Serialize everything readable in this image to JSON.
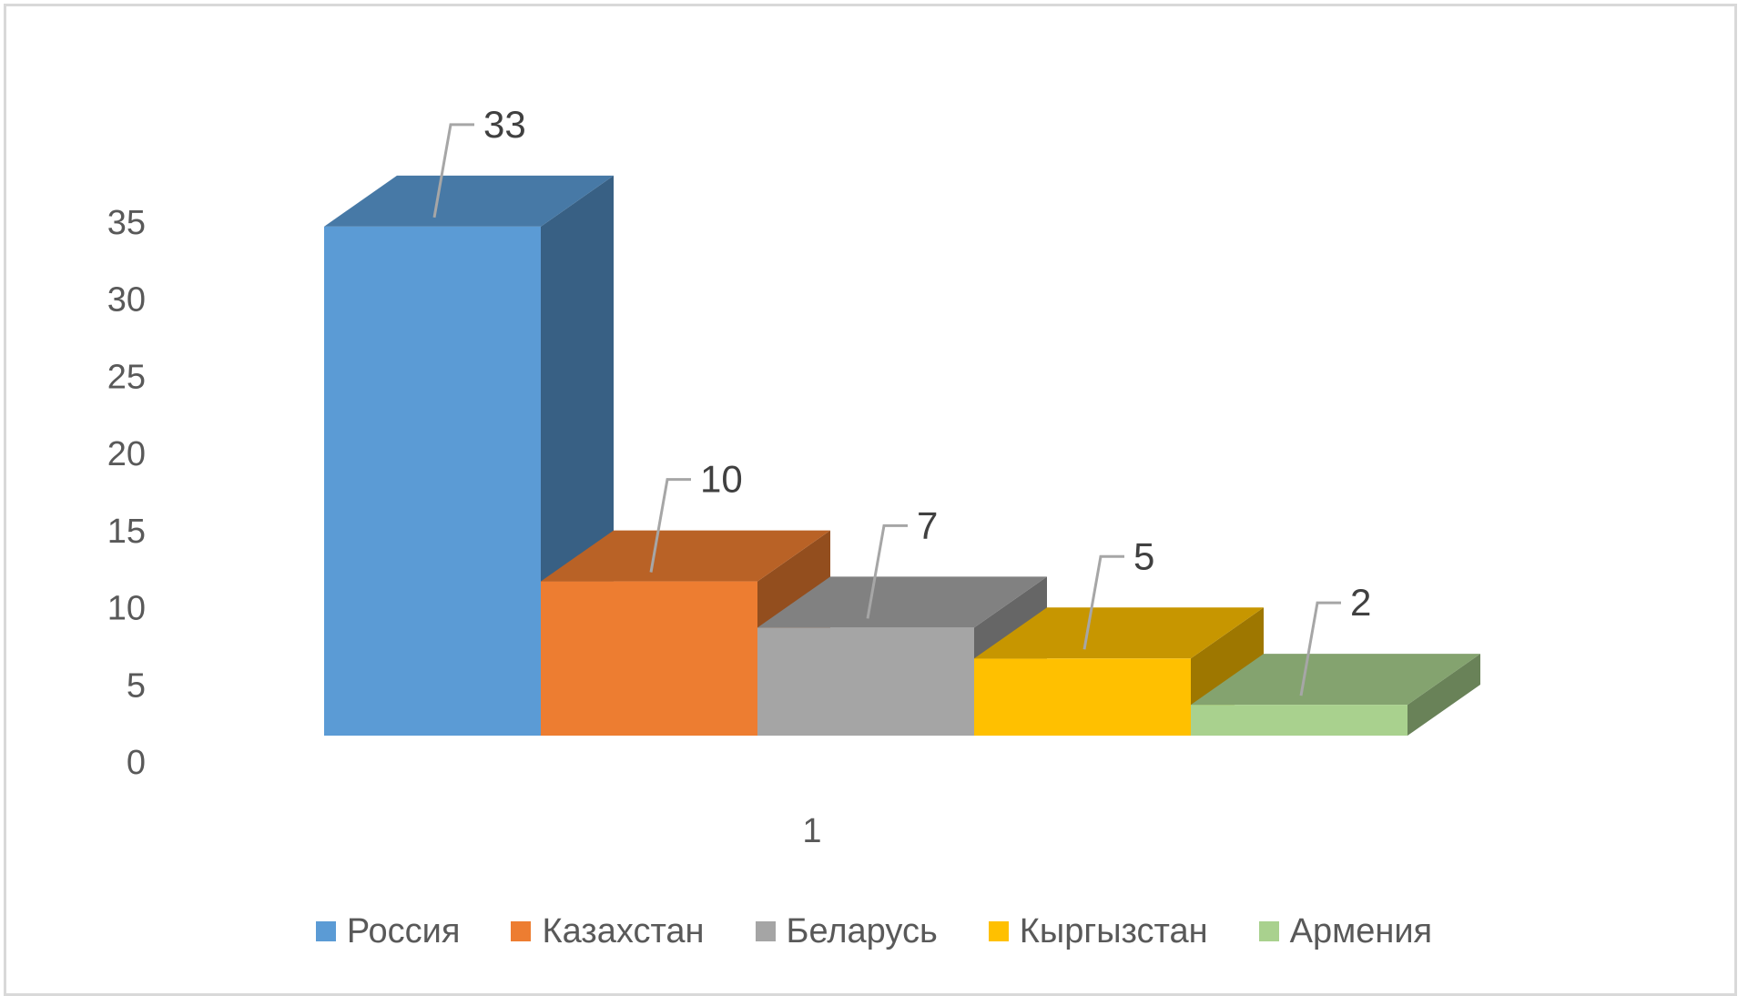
{
  "chart_data": {
    "type": "bar",
    "categories": [
      "1"
    ],
    "series": [
      {
        "name": "Россия",
        "values": [
          33
        ],
        "color": "#5b9bd5"
      },
      {
        "name": "Казахстан",
        "values": [
          10
        ],
        "color": "#ed7d31"
      },
      {
        "name": "Беларусь",
        "values": [
          7
        ],
        "color": "#a5a5a5"
      },
      {
        "name": "Кыргызстан",
        "values": [
          5
        ],
        "color": "#ffc000"
      },
      {
        "name": "Армения",
        "values": [
          2
        ],
        "color": "#a9d18e"
      }
    ],
    "yticks": [
      "0",
      "5",
      "10",
      "15",
      "20",
      "25",
      "30",
      "35"
    ],
    "ylim": [
      0,
      35
    ],
    "title": "",
    "xlabel": "",
    "ylabel": "",
    "legend_position": "bottom",
    "grid": false,
    "style": "3d-column"
  }
}
